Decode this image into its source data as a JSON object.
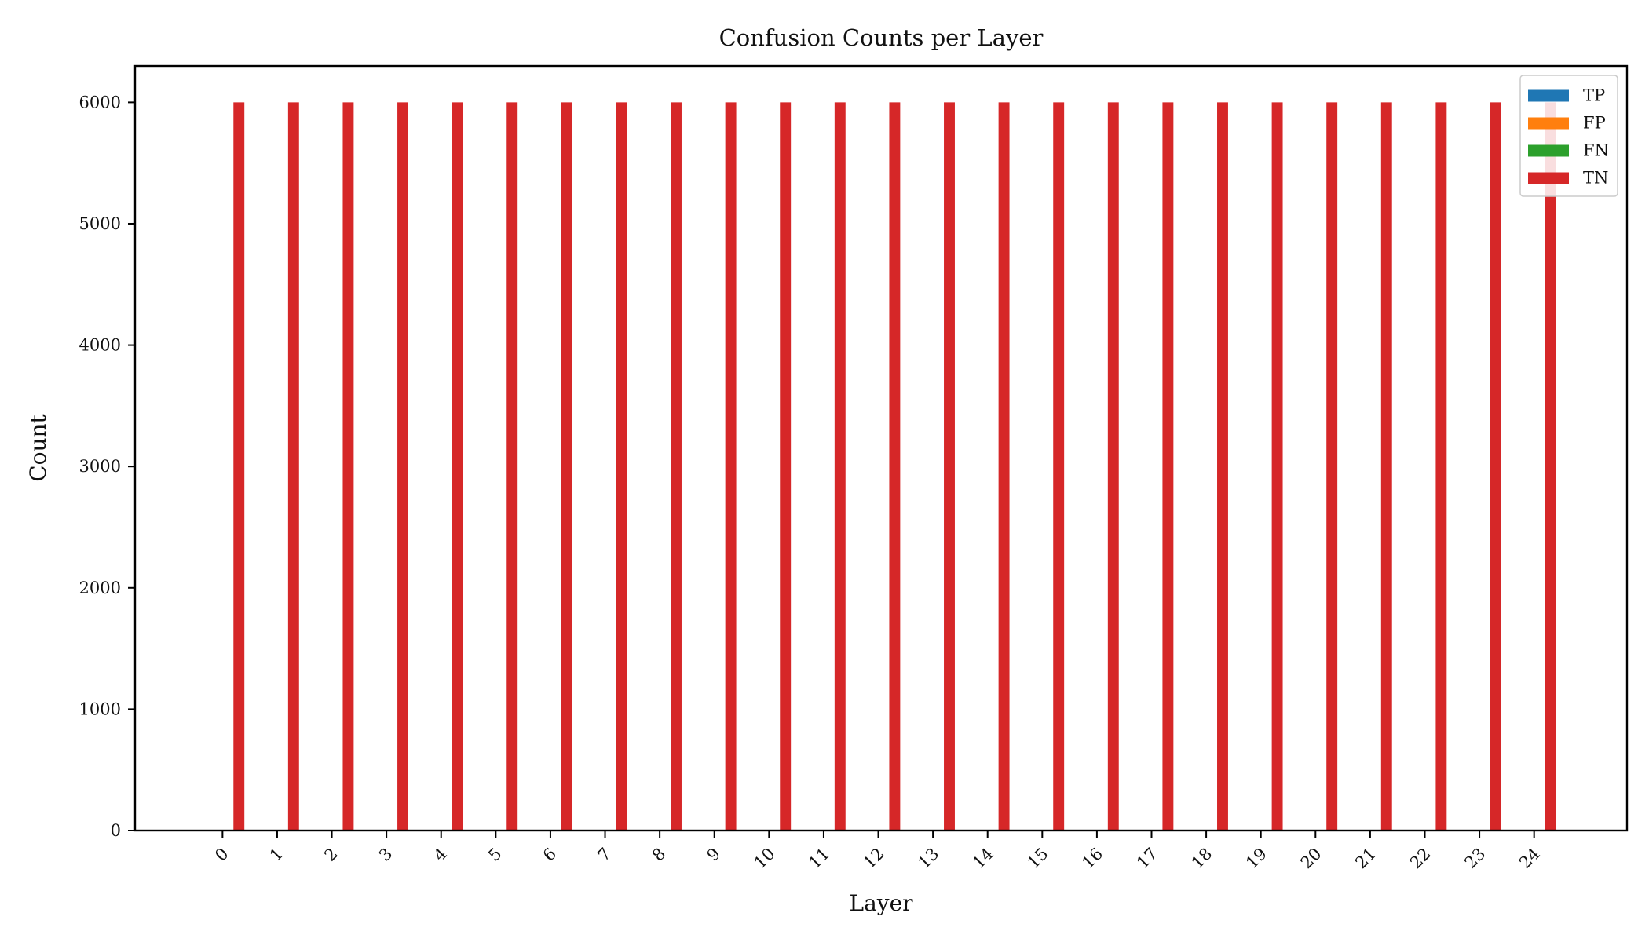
{
  "chart_data": {
    "type": "bar",
    "title": "Confusion Counts per Layer",
    "xlabel": "Layer",
    "ylabel": "Count",
    "categories": [
      "0",
      "1",
      "2",
      "3",
      "4",
      "5",
      "6",
      "7",
      "8",
      "9",
      "10",
      "11",
      "12",
      "13",
      "14",
      "15",
      "16",
      "17",
      "18",
      "19",
      "20",
      "21",
      "22",
      "23",
      "24"
    ],
    "series": [
      {
        "name": "TP",
        "color": "#1f77b4",
        "values": [
          0,
          0,
          0,
          0,
          0,
          0,
          0,
          0,
          0,
          0,
          0,
          0,
          0,
          0,
          0,
          0,
          0,
          0,
          0,
          0,
          0,
          0,
          0,
          0,
          0
        ]
      },
      {
        "name": "FP",
        "color": "#ff7f0e",
        "values": [
          0,
          0,
          0,
          0,
          0,
          0,
          0,
          0,
          0,
          0,
          0,
          0,
          0,
          0,
          0,
          0,
          0,
          0,
          0,
          0,
          0,
          0,
          0,
          0,
          0
        ]
      },
      {
        "name": "FN",
        "color": "#2ca02c",
        "values": [
          0,
          0,
          0,
          0,
          0,
          0,
          0,
          0,
          0,
          0,
          0,
          0,
          0,
          0,
          0,
          0,
          0,
          0,
          0,
          0,
          0,
          0,
          0,
          0,
          0
        ]
      },
      {
        "name": "TN",
        "color": "#d62728",
        "values": [
          6000,
          6000,
          6000,
          6000,
          6000,
          6000,
          6000,
          6000,
          6000,
          6000,
          6000,
          6000,
          6000,
          6000,
          6000,
          6000,
          6000,
          6000,
          6000,
          6000,
          6000,
          6000,
          6000,
          6000,
          6000
        ]
      }
    ],
    "ylim": [
      0,
      6300
    ],
    "xlim": [
      -1.6,
      25.7
    ],
    "yticks": [
      0,
      1000,
      2000,
      3000,
      4000,
      5000,
      6000
    ],
    "ytick_labels": [
      "0",
      "1000",
      "2000",
      "3000",
      "4000",
      "5000",
      "6000"
    ],
    "grid": false,
    "legend_position": "top-right",
    "x_tick_rotation": 45
  }
}
